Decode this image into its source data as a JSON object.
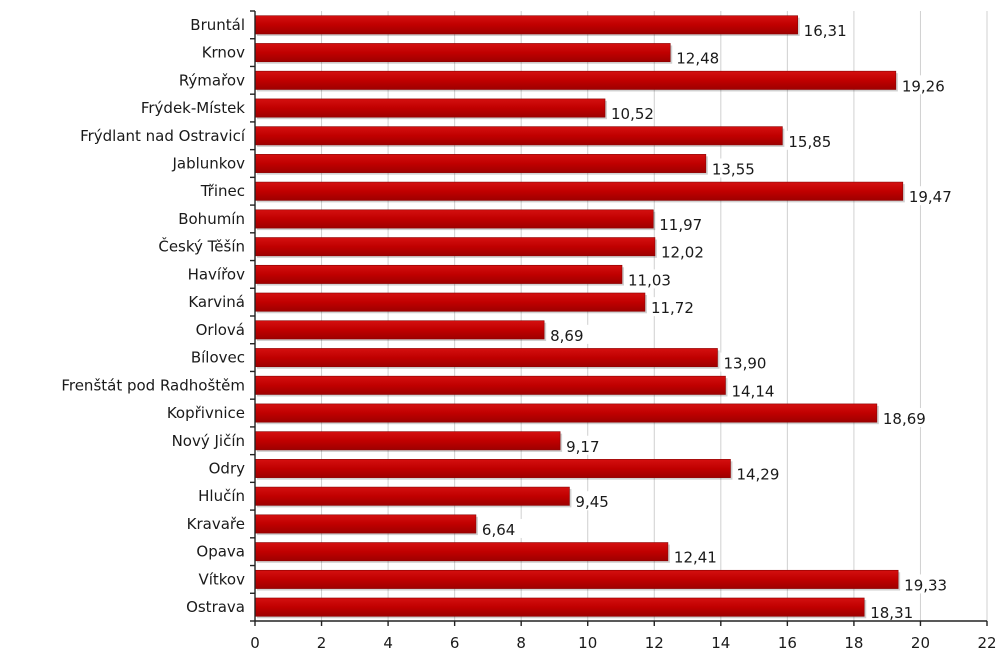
{
  "colors": {
    "bar": "#c00000",
    "bar_edge": "#8a0000",
    "grid": "#d0d0d0",
    "text": "#1a1a1a"
  },
  "chart_data": {
    "type": "bar",
    "orientation": "horizontal",
    "categories": [
      "Bruntál",
      "Krnov",
      "Rýmařov",
      "Frýdek-Místek",
      "Frýdlant nad Ostravicí",
      "Jablunkov",
      "Třinec",
      "Bohumín",
      "Český Těšín",
      "Havířov",
      "Karviná",
      "Orlová",
      "Bílovec",
      "Frenštát pod Radhoštěm",
      "Kopřivnice",
      "Nový Jičín",
      "Odry",
      "Hlučín",
      "Kravaře",
      "Opava",
      "Vítkov",
      "Ostrava"
    ],
    "values": [
      16.31,
      12.48,
      19.26,
      10.52,
      15.85,
      13.55,
      19.47,
      11.97,
      12.02,
      11.03,
      11.72,
      8.69,
      13.9,
      14.14,
      18.69,
      9.17,
      14.29,
      9.45,
      6.64,
      12.41,
      19.33,
      18.31
    ],
    "value_labels": [
      "16,31",
      "12,48",
      "19,26",
      "10,52",
      "15,85",
      "13,55",
      "19,47",
      "11,97",
      "12,02",
      "11,03",
      "11,72",
      "8,69",
      "13,90",
      "14,14",
      "18,69",
      "9,17",
      "14,29",
      "9,45",
      "6,64",
      "12,41",
      "19,33",
      "18,31"
    ],
    "xlim": [
      0,
      22
    ],
    "x_ticks": [
      0,
      2,
      4,
      6,
      8,
      10,
      12,
      14,
      16,
      18,
      20,
      22
    ],
    "grid": true,
    "title": "",
    "xlabel": "",
    "ylabel": ""
  }
}
